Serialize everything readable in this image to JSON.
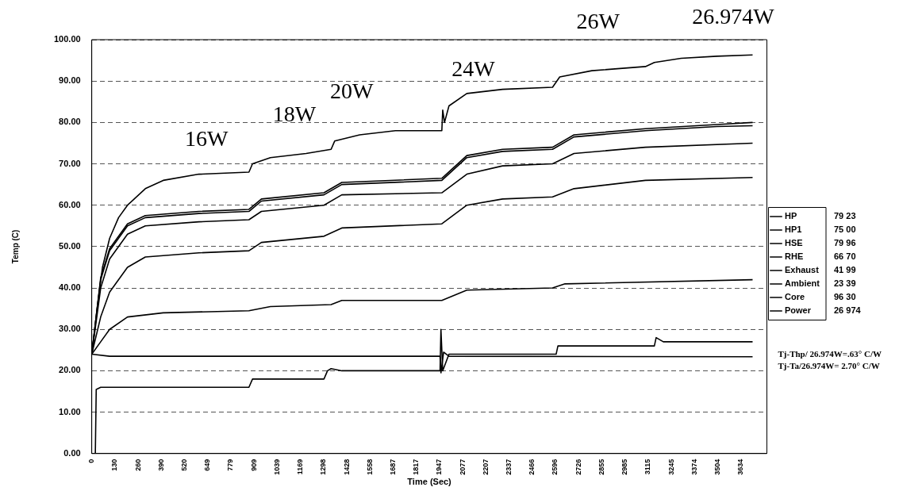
{
  "chart_data": {
    "type": "line",
    "xlabel": "Time (Sec)",
    "ylabel": "Temp (C)",
    "xlim": [
      0,
      3780
    ],
    "xticks": [
      0,
      130,
      260,
      390,
      520,
      649,
      779,
      909,
      1039,
      1169,
      1298,
      1428,
      1558,
      1687,
      1817,
      1947,
      2077,
      2207,
      2337,
      2466,
      2596,
      2726,
      2855,
      2985,
      3115,
      3245,
      3374,
      3504,
      3634
    ],
    "ylim": [
      0,
      100
    ],
    "yticks": [
      {
        "value": 0,
        "label": "0.00"
      },
      {
        "value": 10,
        "label": "10.00"
      },
      {
        "value": 20,
        "label": "20.00"
      },
      {
        "value": 30,
        "label": "30.00"
      },
      {
        "value": 40,
        "label": "40.00"
      },
      {
        "value": 50,
        "label": "50.00"
      },
      {
        "value": 60,
        "label": "60.00"
      },
      {
        "value": 70,
        "label": "70.00"
      },
      {
        "value": 80,
        "label": "80.00"
      },
      {
        "value": 90,
        "label": "90.00"
      },
      {
        "value": 100,
        "label": "100.00"
      }
    ],
    "grid": "y",
    "legend": "right",
    "marker": "none",
    "line_style": "solid",
    "series": [
      {
        "name": "HP",
        "color": "#000000",
        "x": [
          0,
          50,
          100,
          200,
          300,
          600,
          880,
          950,
          1300,
          1400,
          1960,
          2100,
          2300,
          2580,
          2700,
          3100,
          3500,
          3700
        ],
        "values": [
          24,
          42,
          49,
          55,
          57,
          58,
          58.5,
          61,
          62.5,
          65,
          66,
          71.5,
          73,
          73.5,
          76.5,
          78,
          79,
          79.2
        ]
      },
      {
        "name": "HP1",
        "color": "#000000",
        "x": [
          0,
          50,
          100,
          200,
          300,
          600,
          880,
          950,
          1300,
          1400,
          1960,
          2100,
          2300,
          2580,
          2700,
          3100,
          3700
        ],
        "values": [
          24,
          40,
          47,
          53,
          55,
          56,
          56.5,
          58.5,
          60,
          62.5,
          63,
          67.5,
          69.5,
          70,
          72.5,
          74,
          75
        ]
      },
      {
        "name": "HSE",
        "color": "#000000",
        "x": [
          0,
          50,
          100,
          200,
          300,
          600,
          880,
          950,
          1300,
          1400,
          1960,
          2100,
          2300,
          2580,
          2700,
          3100,
          3500,
          3700
        ],
        "values": [
          24,
          42.5,
          49.5,
          55.5,
          57.5,
          58.5,
          59,
          61.5,
          63,
          65.5,
          66.5,
          72,
          73.5,
          74,
          77,
          78.5,
          79.5,
          80
        ]
      },
      {
        "name": "RHE",
        "color": "#000000",
        "x": [
          0,
          50,
          100,
          200,
          300,
          600,
          880,
          950,
          1300,
          1400,
          1960,
          2100,
          2300,
          2580,
          2700,
          3100,
          3700
        ],
        "values": [
          24,
          33,
          39,
          45,
          47.5,
          48.5,
          49,
          51,
          52.5,
          54.5,
          55.5,
          60,
          61.5,
          62,
          64,
          66,
          66.7
        ]
      },
      {
        "name": "Exhaust",
        "color": "#000000",
        "x": [
          0,
          50,
          100,
          200,
          400,
          880,
          1000,
          1340,
          1400,
          1960,
          2100,
          2580,
          2650,
          3700
        ],
        "values": [
          24,
          27,
          30,
          33,
          34,
          34.5,
          35.5,
          36,
          37,
          37,
          39.5,
          40,
          41,
          42
        ]
      },
      {
        "name": "Ambient",
        "color": "#000000",
        "x": [
          0,
          100,
          1950,
          1955,
          1970,
          2000,
          3700
        ],
        "values": [
          24,
          23.5,
          23.5,
          19.5,
          24.5,
          23.5,
          23.4
        ]
      },
      {
        "name": "Core",
        "color": "#000000",
        "x": [
          0,
          30,
          60,
          100,
          150,
          200,
          300,
          400,
          600,
          880,
          900,
          1000,
          1200,
          1340,
          1360,
          1500,
          1700,
          1960,
          1965,
          1975,
          2000,
          2100,
          2300,
          2580,
          2620,
          2800,
          3100,
          3150,
          3300,
          3500,
          3700
        ],
        "values": [
          24,
          35,
          45,
          52,
          57,
          60,
          64,
          66,
          67.5,
          68,
          70,
          71.5,
          72.5,
          73.5,
          75.5,
          77,
          78,
          78,
          83,
          80,
          84,
          87,
          88,
          88.5,
          91,
          92.5,
          93.5,
          94.5,
          95.5,
          96,
          96.3
        ]
      },
      {
        "name": "Power",
        "color": "#000000",
        "x": [
          0,
          20,
          25,
          50,
          880,
          900,
          1300,
          1320,
          1340,
          1400,
          1950,
          1955,
          1965,
          2000,
          2600,
          2610,
          3150,
          3160,
          3200,
          3700
        ],
        "values": [
          0,
          0,
          15.5,
          16,
          16,
          18,
          18,
          20,
          20.5,
          20,
          20,
          30,
          20,
          24,
          24,
          26,
          26,
          28,
          27,
          27
        ]
      }
    ],
    "annotations": [
      "79 23",
      "75 00",
      "79 96",
      "66 70",
      "41 99",
      "23 39",
      "96 30",
      "26 974",
      "Tj-Thp/ 26.974W=.63° C/W",
      "Tj-Ta/26.974W= 2.70° C/W",
      "16W",
      "18W",
      "20W",
      "24W",
      "26W",
      "26.974W"
    ]
  }
}
